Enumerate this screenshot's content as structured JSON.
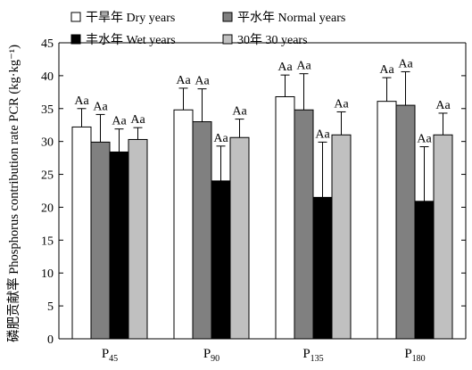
{
  "chart_data": {
    "type": "bar",
    "ylabel": "磷肥贡献率 Phosphorus contribution rate PCR (kg·kg⁻¹)",
    "ylim": [
      0,
      45
    ],
    "yticks": [
      0,
      5,
      10,
      15,
      20,
      25,
      30,
      35,
      40,
      45
    ],
    "grid": false,
    "legend_position": "top",
    "categories": [
      {
        "label": "P",
        "sub": "45"
      },
      {
        "label": "P",
        "sub": "90"
      },
      {
        "label": "P",
        "sub": "135"
      },
      {
        "label": "P",
        "sub": "180"
      }
    ],
    "series": [
      {
        "name": "干旱年 Dry years",
        "color": "#ffffff",
        "values": [
          32.2,
          34.8,
          36.8,
          36.1
        ],
        "errors": [
          2.8,
          3.3,
          3.3,
          3.6
        ],
        "labels": [
          "Aa",
          "Aa",
          "Aa",
          "Aa"
        ]
      },
      {
        "name": "平水年 Normal years",
        "color": "#808080",
        "values": [
          29.9,
          33.0,
          34.8,
          35.5
        ],
        "errors": [
          4.2,
          5.0,
          5.5,
          5.1
        ],
        "labels": [
          "Aa",
          "Aa",
          "Aa",
          "Aa"
        ]
      },
      {
        "name": "丰水年 Wet years",
        "color": "#000000",
        "values": [
          28.4,
          24.0,
          21.5,
          20.9
        ],
        "errors": [
          3.5,
          5.3,
          8.4,
          8.3
        ],
        "labels": [
          "Aa",
          "Aa",
          "Aa",
          "Aa"
        ]
      },
      {
        "name": "30年 30 years",
        "color": "#c0c0c0",
        "values": [
          30.3,
          30.6,
          31.0,
          31.0
        ],
        "errors": [
          1.8,
          2.8,
          3.5,
          3.3
        ],
        "labels": [
          "Aa",
          "Aa",
          "Aa",
          "Aa"
        ]
      }
    ]
  }
}
